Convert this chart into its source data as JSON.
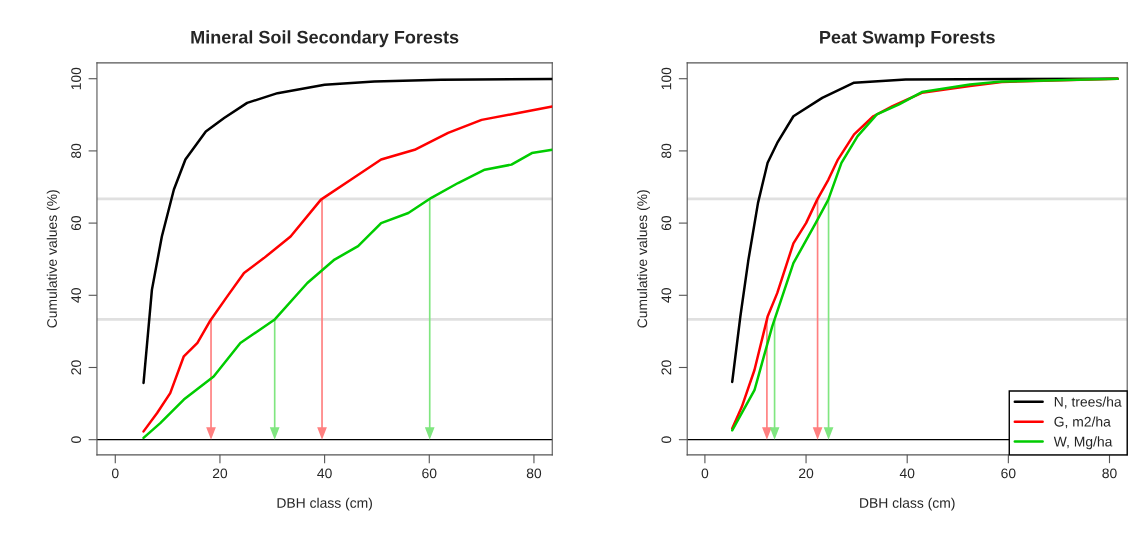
{
  "chart_data": [
    {
      "type": "line",
      "title": "Mineral Soil Secondary Forests",
      "xlabel": "DBH class (cm)",
      "ylabel": "Cumulative values (%)",
      "xlim": [
        -3.5,
        83.5
      ],
      "ylim": [
        -4.2,
        104.4
      ],
      "xticks": [
        0,
        20,
        40,
        60,
        80
      ],
      "yticks": [
        0,
        20,
        40,
        60,
        80,
        100
      ],
      "grid": false,
      "legend": false,
      "ref_lines": [
        {
          "axis": "y",
          "value": 33.3,
          "color": "#e0e0e0"
        },
        {
          "axis": "y",
          "value": 66.7,
          "color": "#e0e0e0"
        },
        {
          "axis": "y",
          "value": 0,
          "color": "#000000"
        }
      ],
      "series": [
        {
          "color": "#000000",
          "x": [
            5.4,
            7.0,
            8.9,
            11.2,
            13.4,
            17.3,
            20.8,
            25.2,
            31,
            40,
            49.5,
            62.3,
            83.5
          ],
          "values": [
            15.7,
            41.5,
            56.3,
            69.3,
            77.6,
            85.4,
            89.1,
            93.3,
            96,
            98.3,
            99.2,
            99.7,
            99.9
          ]
        },
        {
          "color": "#ff0000",
          "x": [
            5.4,
            8,
            10.5,
            13.1,
            15.7,
            18.2,
            21.4,
            24.6,
            28.4,
            33.5,
            39.3,
            45,
            50.8,
            57.2,
            63.6,
            70,
            77,
            83.5
          ],
          "values": [
            2.3,
            7.4,
            12.9,
            23.1,
            26.8,
            33.1,
            39.7,
            46.2,
            50.3,
            56.3,
            66.5,
            72,
            77.6,
            80.3,
            85,
            88.6,
            90.5,
            92.3
          ]
        },
        {
          "color": "#00cc00",
          "x": [
            5.4,
            8.6,
            13.1,
            18.8,
            23.9,
            30.4,
            36.7,
            41.9,
            46.4,
            50.8,
            56,
            60.4,
            65.5,
            70.6,
            75.7,
            79.6,
            83.5
          ],
          "values": [
            0.5,
            4.6,
            11.1,
            17.5,
            26.8,
            33.2,
            43.4,
            49.9,
            53.6,
            60,
            62.8,
            67,
            71.1,
            74.8,
            76.2,
            79.4,
            80.3
          ]
        }
      ]
    },
    {
      "type": "line",
      "title": "Peat Swamp Forests",
      "xlabel": "DBH class (cm)",
      "ylabel": "Cumulative values (%)",
      "xlim": [
        -3.5,
        83.5
      ],
      "ylim": [
        -4.2,
        104.4
      ],
      "xticks": [
        0,
        20,
        40,
        60,
        80
      ],
      "yticks": [
        0,
        20,
        40,
        60,
        80,
        100
      ],
      "grid": false,
      "legend": "bottom right",
      "ref_lines": [
        {
          "axis": "y",
          "value": 33.3,
          "color": "#e0e0e0"
        },
        {
          "axis": "y",
          "value": 66.7,
          "color": "#e0e0e0"
        },
        {
          "axis": "y",
          "value": 0,
          "color": "#000000"
        }
      ],
      "series": [
        {
          "name": "N, trees/ha",
          "color": "#000000",
          "x": [
            5.4,
            7,
            8.6,
            10.5,
            12.4,
            14.3,
            17.5,
            23.2,
            29.5,
            39.7,
            81.6
          ],
          "values": [
            16,
            34,
            49.8,
            65.6,
            76.7,
            82.2,
            89.6,
            94.7,
            98.9,
            99.8,
            100
          ]
        },
        {
          "name": "G, m2/ha",
          "color": "#ff0000",
          "x": [
            5.4,
            7.3,
            9.8,
            12.4,
            14.3,
            17.5,
            20,
            22.2,
            24.4,
            26.3,
            29.5,
            33.3,
            37.1,
            42.9,
            52.4,
            58.7,
            81.6
          ],
          "values": [
            3.1,
            9.1,
            19.3,
            34.1,
            40.6,
            54.4,
            60,
            66.5,
            72,
            77.6,
            84.6,
            89.6,
            92.4,
            96.1,
            98,
            99.1,
            100
          ]
        },
        {
          "name": "W, Mg/ha",
          "color": "#00cc00",
          "x": [
            5.4,
            9.8,
            13.3,
            17.5,
            21.9,
            24.4,
            27,
            30.2,
            34,
            38.4,
            42.9,
            52.4,
            58.7,
            81.6
          ],
          "values": [
            2.6,
            13.7,
            31.3,
            48.9,
            60,
            66.5,
            76.7,
            84.1,
            90.1,
            92.9,
            96.3,
            98.4,
            99.2,
            100
          ]
        }
      ]
    }
  ]
}
